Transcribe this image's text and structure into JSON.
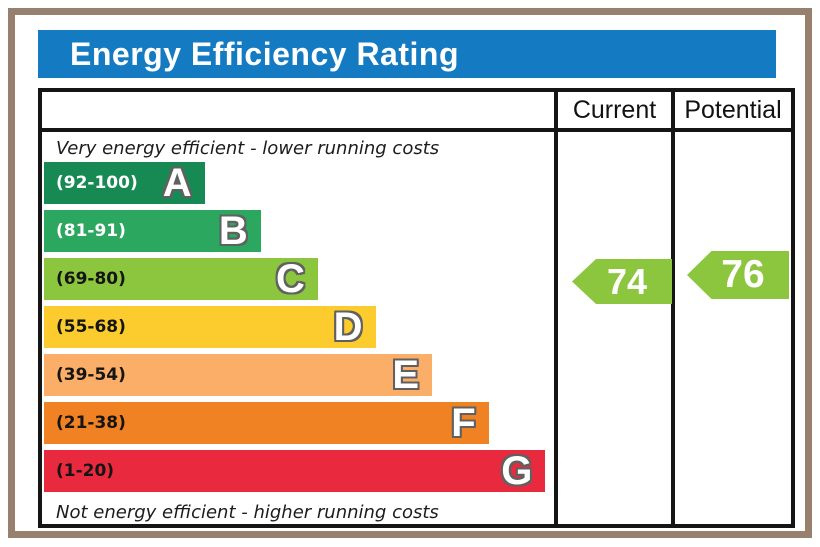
{
  "colors": {
    "title_bar": "#147ac1",
    "frame": "#97816e",
    "table_border": "#151515",
    "background": "#ffffff",
    "arrow_green": "#8cc63f"
  },
  "chart_data": {
    "type": "bar",
    "title": "Energy Efficiency Rating",
    "top_caption": "Very energy efficient - lower running costs",
    "bottom_caption": "Not energy efficient - higher running costs",
    "columns": [
      "Current",
      "Potential"
    ],
    "bands": [
      {
        "letter": "A",
        "range": "(92-100)",
        "min": 92,
        "max": 100,
        "color": "#178a54",
        "label_color": "#ffffff",
        "width": "31.5%"
      },
      {
        "letter": "B",
        "range": "(81-91)",
        "min": 81,
        "max": 91,
        "color": "#2ba75f",
        "label_color": "#ffffff",
        "width": "42.5%"
      },
      {
        "letter": "C",
        "range": "(69-80)",
        "min": 69,
        "max": 80,
        "color": "#8cc63f",
        "label_color": "#151515",
        "width": "53.7%"
      },
      {
        "letter": "D",
        "range": "(55-68)",
        "min": 55,
        "max": 68,
        "color": "#fccc2e",
        "label_color": "#151515",
        "width": "65.0%"
      },
      {
        "letter": "E",
        "range": "(39-54)",
        "min": 39,
        "max": 54,
        "color": "#fbae67",
        "label_color": "#151515",
        "width": "76.1%"
      },
      {
        "letter": "F",
        "range": "(21-38)",
        "min": 21,
        "max": 38,
        "color": "#f08223",
        "label_color": "#151515",
        "width": "87.2%"
      },
      {
        "letter": "G",
        "range": "(1-20)",
        "min": 1,
        "max": 20,
        "color": "#e8293e",
        "label_color": "#151515",
        "width": "98.3%"
      }
    ],
    "current": {
      "value": 74,
      "band": "C",
      "color": "#8cc63f"
    },
    "potential": {
      "value": 76,
      "band": "C",
      "color": "#8cc63f"
    }
  }
}
